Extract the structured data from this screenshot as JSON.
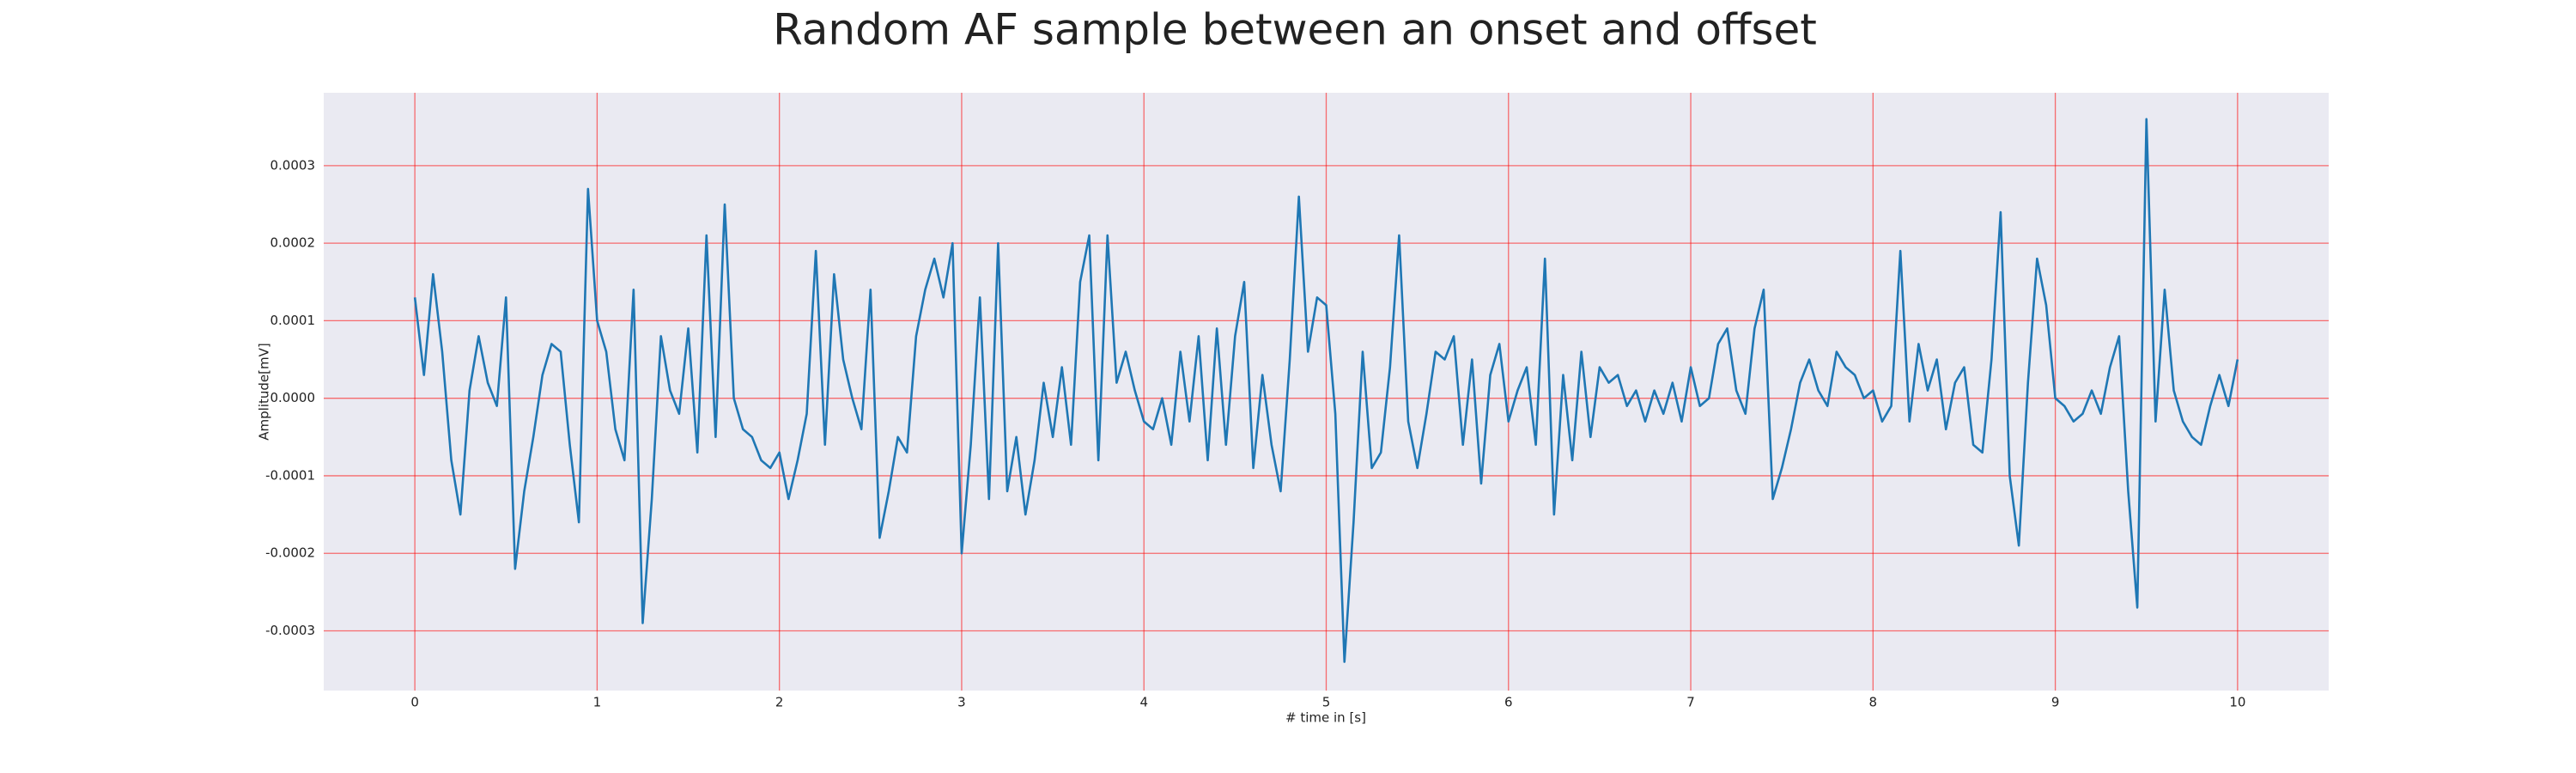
{
  "chart_data": {
    "type": "line",
    "title": "Random AF sample between an onset and offset",
    "xlabel": "# time in [s]",
    "ylabel": "Amplitude[mV]",
    "color": "#1f77b4",
    "background": "#eaeaf2",
    "grid": true,
    "grid_color": "#ff0000",
    "xlim": [
      -0.5,
      10.5
    ],
    "ylim": [
      -0.000377,
      0.000394
    ],
    "xticks": [
      0,
      1,
      2,
      3,
      4,
      5,
      6,
      7,
      8,
      9,
      10
    ],
    "yticks": [
      -0.0003,
      -0.0002,
      -0.0001,
      {
        "value": 0,
        "label": "0.0000"
      },
      0.0001,
      0.0002,
      0.0003
    ],
    "x": [
      0,
      0.05,
      0.1,
      0.15,
      0.2,
      0.25,
      0.3,
      0.35,
      0.4,
      0.45,
      0.5,
      0.55,
      0.6,
      0.65,
      0.7,
      0.75,
      0.8,
      0.85,
      0.9,
      0.95,
      1,
      1.05,
      1.1,
      1.15,
      1.2,
      1.25,
      1.3,
      1.35,
      1.4,
      1.45,
      1.5,
      1.55,
      1.6,
      1.65,
      1.7,
      1.75,
      1.8,
      1.85,
      1.9,
      1.95,
      2,
      2.05,
      2.1,
      2.15,
      2.2,
      2.25,
      2.3,
      2.35,
      2.4,
      2.45,
      2.5,
      2.55,
      2.6,
      2.65,
      2.7,
      2.75,
      2.8,
      2.85,
      2.9,
      2.95,
      3,
      3.05,
      3.1,
      3.15,
      3.2,
      3.25,
      3.3,
      3.35,
      3.4,
      3.45,
      3.5,
      3.55,
      3.6,
      3.65,
      3.7,
      3.75,
      3.8,
      3.85,
      3.9,
      3.95,
      4,
      4.05,
      4.1,
      4.15,
      4.2,
      4.25,
      4.3,
      4.35,
      4.4,
      4.45,
      4.5,
      4.55,
      4.6,
      4.65,
      4.7,
      4.75,
      4.8,
      4.85,
      4.9,
      4.95,
      5,
      5.05,
      5.1,
      5.15,
      5.2,
      5.25,
      5.3,
      5.35,
      5.4,
      5.45,
      5.5,
      5.55,
      5.6,
      5.65,
      5.7,
      5.75,
      5.8,
      5.85,
      5.9,
      5.95,
      6,
      6.05,
      6.1,
      6.15,
      6.2,
      6.25,
      6.3,
      6.35,
      6.4,
      6.45,
      6.5,
      6.55,
      6.6,
      6.65,
      6.7,
      6.75,
      6.8,
      6.85,
      6.9,
      6.95,
      7,
      7.05,
      7.1,
      7.15,
      7.2,
      7.25,
      7.3,
      7.35,
      7.4,
      7.45,
      7.5,
      7.55,
      7.6,
      7.65,
      7.7,
      7.75,
      7.8,
      7.85,
      7.9,
      7.95,
      8,
      8.05,
      8.1,
      8.15,
      8.2,
      8.25,
      8.3,
      8.35,
      8.4,
      8.45,
      8.5,
      8.55,
      8.6,
      8.65,
      8.7,
      8.75,
      8.8,
      8.85,
      8.9,
      8.95,
      9,
      9.05,
      9.1,
      9.15,
      9.2,
      9.25,
      9.3,
      9.35,
      9.4,
      9.45,
      9.5,
      9.55,
      9.6,
      9.65,
      9.7,
      9.75,
      9.8,
      9.85,
      9.9,
      9.95,
      10
    ],
    "values": [
      0.00013,
      3e-05,
      0.00016,
      6e-05,
      -8e-05,
      -0.00015,
      1e-05,
      8e-05,
      2e-05,
      -1e-05,
      0.00013,
      -0.00022,
      -0.00012,
      -5e-05,
      3e-05,
      7e-05,
      6e-05,
      -6e-05,
      -0.00016,
      0.00027,
      0.0001,
      6e-05,
      -4e-05,
      -8e-05,
      0.00014,
      -0.00029,
      -0.00013,
      8e-05,
      1e-05,
      -2e-05,
      9e-05,
      -7e-05,
      0.00021,
      -5e-05,
      0.00025,
      0,
      -4e-05,
      -5e-05,
      -8e-05,
      -9e-05,
      -7e-05,
      -0.00013,
      -8e-05,
      -2e-05,
      0.00019,
      -6e-05,
      0.00016,
      5e-05,
      0,
      -4e-05,
      0.00014,
      -0.00018,
      -0.00012,
      -5e-05,
      -7e-05,
      8e-05,
      0.00014,
      0.00018,
      0.00013,
      0.0002,
      -0.0002,
      -6e-05,
      0.00013,
      -0.00013,
      0.0002,
      -0.00012,
      -5e-05,
      -0.00015,
      -8e-05,
      2e-05,
      -5e-05,
      4e-05,
      -6e-05,
      0.00015,
      0.00021,
      -8e-05,
      0.00021,
      2e-05,
      6e-05,
      1e-05,
      -3e-05,
      -4e-05,
      0,
      -6e-05,
      6e-05,
      -3e-05,
      8e-05,
      -8e-05,
      9e-05,
      -6e-05,
      8e-05,
      0.00015,
      -9e-05,
      3e-05,
      -6e-05,
      -0.00012,
      5e-05,
      0.00026,
      6e-05,
      0.00013,
      0.00012,
      -2e-05,
      -0.00034,
      -0.00016,
      6e-05,
      -9e-05,
      -7e-05,
      4e-05,
      0.00021,
      -3e-05,
      -9e-05,
      -2e-05,
      6e-05,
      5e-05,
      8e-05,
      -6e-05,
      5e-05,
      -0.00011,
      3e-05,
      7e-05,
      -3e-05,
      1e-05,
      4e-05,
      -6e-05,
      0.00018,
      -0.00015,
      3e-05,
      -8e-05,
      6e-05,
      -5e-05,
      4e-05,
      2e-05,
      3e-05,
      -1e-05,
      1e-05,
      -3e-05,
      1e-05,
      -2e-05,
      2e-05,
      -3e-05,
      4e-05,
      -1e-05,
      0,
      7e-05,
      9e-05,
      1e-05,
      -2e-05,
      9e-05,
      0.00014,
      -0.00013,
      -9e-05,
      -4e-05,
      2e-05,
      5e-05,
      1e-05,
      -1e-05,
      6e-05,
      4e-05,
      3e-05,
      0,
      1e-05,
      -3e-05,
      -1e-05,
      0.00019,
      -3e-05,
      7e-05,
      1e-05,
      5e-05,
      -4e-05,
      2e-05,
      4e-05,
      -6e-05,
      -7e-05,
      5e-05,
      0.00024,
      -0.0001,
      -0.00019,
      2e-05,
      0.00018,
      0.00012,
      0,
      -1e-05,
      -3e-05,
      -2e-05,
      1e-05,
      -2e-05,
      4e-05,
      8e-05,
      -0.00012,
      -0.00027,
      0.00036,
      -3e-05,
      0.00014,
      1e-05,
      -3e-05,
      -5e-05,
      -6e-05,
      -1e-05,
      3e-05,
      -1e-05,
      5e-05
    ]
  }
}
